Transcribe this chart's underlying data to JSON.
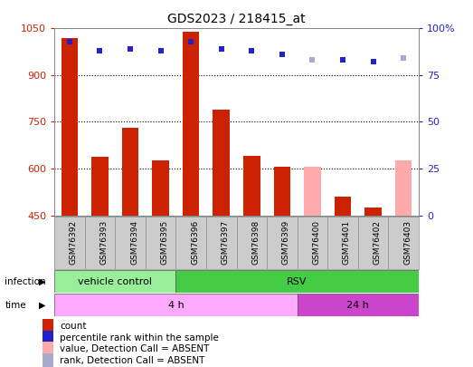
{
  "title": "GDS2023 / 218415_at",
  "samples": [
    "GSM76392",
    "GSM76393",
    "GSM76394",
    "GSM76395",
    "GSM76396",
    "GSM76397",
    "GSM76398",
    "GSM76399",
    "GSM76400",
    "GSM76401",
    "GSM76402",
    "GSM76403"
  ],
  "count_values": [
    1020,
    638,
    730,
    625,
    1040,
    790,
    640,
    605,
    null,
    510,
    475,
    null
  ],
  "count_absent_values": [
    null,
    null,
    null,
    null,
    null,
    null,
    null,
    null,
    605,
    null,
    null,
    625
  ],
  "rank_values": [
    93,
    88,
    89,
    88,
    93,
    89,
    88,
    86,
    null,
    83,
    82,
    null
  ],
  "rank_absent_values": [
    null,
    null,
    null,
    null,
    null,
    null,
    null,
    null,
    83,
    null,
    null,
    84
  ],
  "ylim_left": [
    450,
    1050
  ],
  "ylim_right": [
    0,
    100
  ],
  "yticks_left": [
    450,
    600,
    750,
    900,
    1050
  ],
  "yticks_right": [
    0,
    25,
    50,
    75,
    100
  ],
  "bar_color": "#cc2200",
  "bar_absent_color": "#ffaaaa",
  "rank_color": "#2222cc",
  "rank_absent_color": "#aaaacc",
  "infection_groups": [
    {
      "label": "vehicle control",
      "start": 0,
      "end": 4,
      "color": "#99ee99"
    },
    {
      "label": "RSV",
      "start": 4,
      "end": 12,
      "color": "#44cc44"
    }
  ],
  "time_groups": [
    {
      "label": "4 h",
      "start": 0,
      "end": 8,
      "color": "#ffaaff"
    },
    {
      "label": "24 h",
      "start": 8,
      "end": 12,
      "color": "#cc44cc"
    }
  ],
  "legend_items": [
    {
      "label": "count",
      "color": "#cc2200"
    },
    {
      "label": "percentile rank within the sample",
      "color": "#2222cc"
    },
    {
      "label": "value, Detection Call = ABSENT",
      "color": "#ffaaaa"
    },
    {
      "label": "rank, Detection Call = ABSENT",
      "color": "#aaaacc"
    }
  ],
  "left_color": "#cc2200",
  "right_color": "#2222cc",
  "grid_yticks": [
    600,
    750,
    900
  ]
}
